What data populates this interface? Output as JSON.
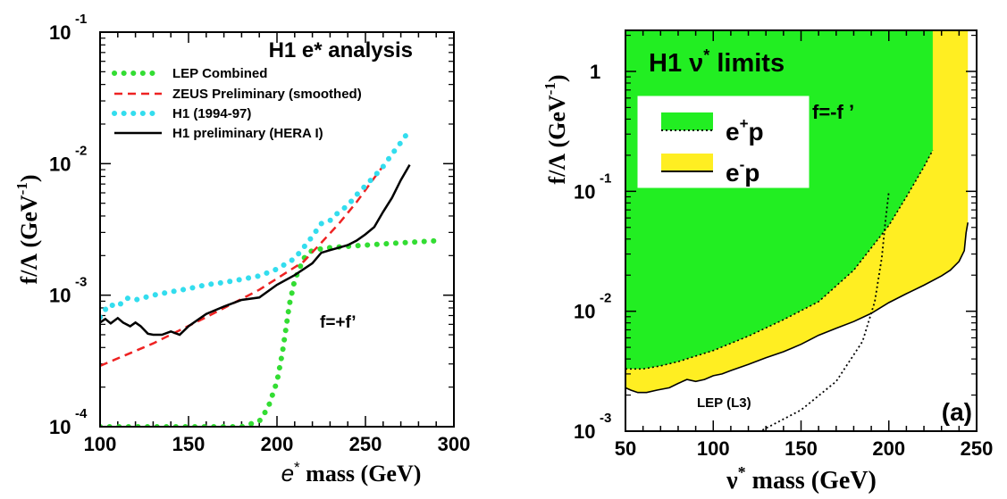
{
  "chart_data": [
    {
      "type": "line",
      "title": "H1 e* analysis",
      "xlabel": "e* mass (GeV)",
      "xlabel_prefix": "e",
      "xlabel_sup": "*",
      "xlabel_suffix": " mass (GeV)",
      "ylabel": "f/Λ (GeV-1)",
      "ylabel_main": "f/Λ (GeV",
      "ylabel_sup": "-1",
      "ylabel_close": ")",
      "xlim": [
        100,
        300
      ],
      "ylim": [
        0.0001,
        0.1
      ],
      "yscale": "log",
      "xticks": [
        "100",
        "150",
        "200",
        "250",
        "300"
      ],
      "yticks": [
        {
          "base": "10",
          "exp": "-4"
        },
        {
          "base": "10",
          "exp": "-3"
        },
        {
          "base": "10",
          "exp": "-2"
        },
        {
          "base": "10",
          "exp": "-1"
        }
      ],
      "annotation": "f=+f’",
      "legend_position": "top-right",
      "series": [
        {
          "name": "LEP Combined",
          "color": "#33dd33",
          "style": "dots",
          "x": [
            100,
            120,
            140,
            160,
            180,
            190,
            195,
            200,
            203,
            205,
            207,
            210,
            215,
            220,
            230,
            250,
            270,
            292
          ],
          "y": [
            0.0001,
            0.0001,
            0.0001,
            0.0001,
            0.0001,
            0.00011,
            0.00014,
            0.00022,
            0.00036,
            0.00055,
            0.00085,
            0.0013,
            0.0019,
            0.0022,
            0.0023,
            0.0024,
            0.0025,
            0.0026
          ]
        },
        {
          "name": "ZEUS Preliminary (smoothed)",
          "color": "#ee2222",
          "style": "dashed",
          "x": [
            100,
            130,
            160,
            190,
            215,
            225,
            235,
            245,
            255,
            260
          ],
          "y": [
            0.00029,
            0.00043,
            0.00068,
            0.0011,
            0.0018,
            0.0025,
            0.0035,
            0.0051,
            0.0078,
            0.0096
          ]
        },
        {
          "name": "H1 (1994-97)",
          "color": "#33ddee",
          "style": "dots",
          "x": [
            100,
            105,
            110,
            115,
            120,
            130,
            140,
            150,
            160,
            170,
            180,
            190,
            200,
            210,
            215,
            220,
            225,
            230,
            235,
            240,
            245,
            250,
            255,
            260,
            265,
            270,
            275
          ],
          "y": [
            0.00068,
            0.00085,
            0.00082,
            0.00095,
            0.00092,
            0.001,
            0.00106,
            0.00112,
            0.0012,
            0.00125,
            0.00132,
            0.0014,
            0.00158,
            0.0019,
            0.0023,
            0.0028,
            0.0035,
            0.0037,
            0.0043,
            0.0048,
            0.0058,
            0.0068,
            0.008,
            0.0095,
            0.0118,
            0.0145,
            0.018
          ]
        },
        {
          "name": "H1 preliminary (HERA I)",
          "color": "#000000",
          "style": "solid",
          "x": [
            100,
            103,
            106,
            110,
            113,
            117,
            120,
            123,
            127,
            130,
            135,
            140,
            145,
            150,
            160,
            170,
            180,
            190,
            200,
            210,
            220,
            225,
            230,
            235,
            240,
            245,
            250,
            255,
            260,
            265,
            270,
            275
          ],
          "y": [
            0.00062,
            0.00066,
            0.00061,
            0.00067,
            0.00062,
            0.00058,
            0.00062,
            0.00058,
            0.00051,
            0.0005,
            0.0005,
            0.00053,
            0.0005,
            0.00058,
            0.00072,
            0.00082,
            0.00092,
            0.00096,
            0.0012,
            0.00142,
            0.00175,
            0.0021,
            0.0022,
            0.0023,
            0.0024,
            0.0026,
            0.0029,
            0.0033,
            0.0043,
            0.0055,
            0.0075,
            0.0098
          ]
        }
      ]
    },
    {
      "type": "area",
      "title": "H1 ν* limits",
      "title_main": "H1 ν",
      "title_sup": "*",
      "title_suffix": " limits",
      "xlabel": "ν* mass (GeV)",
      "xlabel_prefix": "ν",
      "xlabel_sup": "*",
      "xlabel_suffix": " mass (GeV)",
      "ylabel": "f/Λ (GeV-1)",
      "ylabel_main": "f/Λ (GeV",
      "ylabel_sup": "-1",
      "ylabel_close": ")",
      "xlim": [
        50,
        250
      ],
      "ylim": [
        0.001,
        2.2
      ],
      "yscale": "log",
      "xticks": [
        "50",
        "100",
        "150",
        "200",
        "250"
      ],
      "yticks": [
        {
          "base": "10",
          "exp": "-3"
        },
        {
          "base": "10",
          "exp": "-2"
        },
        {
          "base": "10",
          "exp": "-1"
        },
        {
          "base": "1",
          "exp": ""
        }
      ],
      "annotation": "f=-f ’",
      "panel_label": "(a)",
      "lep_label": "LEP (L3)",
      "legend_position": "top-left",
      "series": [
        {
          "name": "e+p",
          "name_main": "e",
          "name_sup": "+",
          "name_suffix": "p",
          "color": "#22ee22",
          "boundary": "dotted",
          "x": [
            50,
            60,
            70,
            80,
            100,
            120,
            140,
            160,
            180,
            200,
            210,
            220,
            225,
            225
          ],
          "y": [
            0.0033,
            0.0033,
            0.0035,
            0.0038,
            0.0047,
            0.0062,
            0.0085,
            0.012,
            0.022,
            0.052,
            0.09,
            0.16,
            0.22,
            2.2
          ]
        },
        {
          "name": "e-p",
          "name_main": "e",
          "name_sup": "-",
          "name_suffix": "p",
          "color": "#ffee22",
          "boundary": "solid",
          "x": [
            50,
            53,
            57,
            62,
            68,
            75,
            80,
            85,
            90,
            95,
            100,
            105,
            110,
            120,
            130,
            140,
            150,
            160,
            170,
            180,
            190,
            200,
            210,
            220,
            230,
            235,
            240,
            243,
            244,
            245,
            245
          ],
          "y": [
            0.0023,
            0.0022,
            0.0021,
            0.0021,
            0.0022,
            0.0023,
            0.0025,
            0.0027,
            0.0026,
            0.0027,
            0.0029,
            0.003,
            0.0032,
            0.0036,
            0.0041,
            0.0046,
            0.0053,
            0.0063,
            0.0072,
            0.0082,
            0.0096,
            0.0118,
            0.014,
            0.0165,
            0.0197,
            0.022,
            0.026,
            0.032,
            0.045,
            0.055,
            2.2
          ]
        },
        {
          "name": "LEP (L3)",
          "color": "#000000",
          "boundary": "dotted",
          "x": [
            128,
            150,
            170,
            185,
            192,
            196,
            198,
            200
          ],
          "y": [
            0.00102,
            0.0015,
            0.0026,
            0.0056,
            0.012,
            0.028,
            0.055,
            0.1
          ]
        }
      ]
    }
  ]
}
